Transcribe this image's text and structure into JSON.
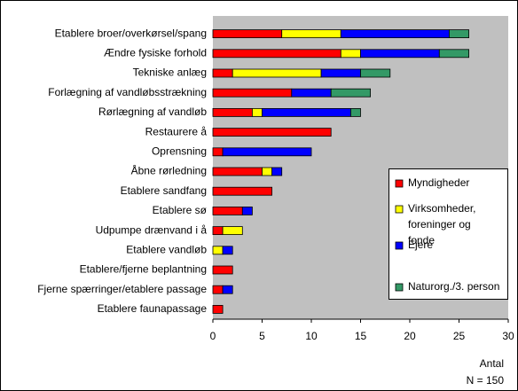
{
  "chart_data": {
    "type": "bar",
    "orientation": "horizontal",
    "stacked": true,
    "categories": [
      "Etablere broer/overkørsel/spang",
      "Ændre fysiske forhold",
      "Tekniske anlæg",
      "Forlægning af vandløbsstrækning",
      "Rørlægning af vandløb",
      "Restaurere å",
      "Oprensning",
      "Åbne rørledning",
      "Etablere sandfang",
      "Etablere sø",
      "Udpumpe drænvand i å",
      "Etablere vandløb",
      "Etablere/fjerne beplantning",
      "Fjerne spærringer/etablere passage",
      "Etablere faunapassage"
    ],
    "series": [
      {
        "name": "Myndigheder",
        "color": "#ff0000",
        "values": [
          7,
          13,
          2,
          8,
          4,
          12,
          1,
          5,
          6,
          3,
          1,
          0,
          2,
          1,
          1
        ]
      },
      {
        "name": "Virksomheder, foreninger og fonde",
        "color": "#ffff00",
        "values": [
          6,
          2,
          9,
          0,
          1,
          0,
          0,
          1,
          0,
          0,
          2,
          1,
          0,
          0,
          0
        ]
      },
      {
        "name": "Ejere",
        "color": "#0000ff",
        "values": [
          11,
          8,
          4,
          4,
          9,
          0,
          9,
          1,
          0,
          1,
          0,
          1,
          0,
          1,
          0
        ]
      },
      {
        "name": "Naturorg./3. person",
        "color": "#339966",
        "values": [
          2,
          3,
          3,
          4,
          1,
          0,
          0,
          0,
          0,
          0,
          0,
          0,
          0,
          0,
          0
        ]
      }
    ],
    "xlim": [
      0,
      30
    ],
    "xticks": [
      0,
      5,
      10,
      15,
      20,
      25,
      30
    ],
    "xlabel": "Antal",
    "annotation": "N = 150",
    "legend": "lower right",
    "grid": false
  }
}
